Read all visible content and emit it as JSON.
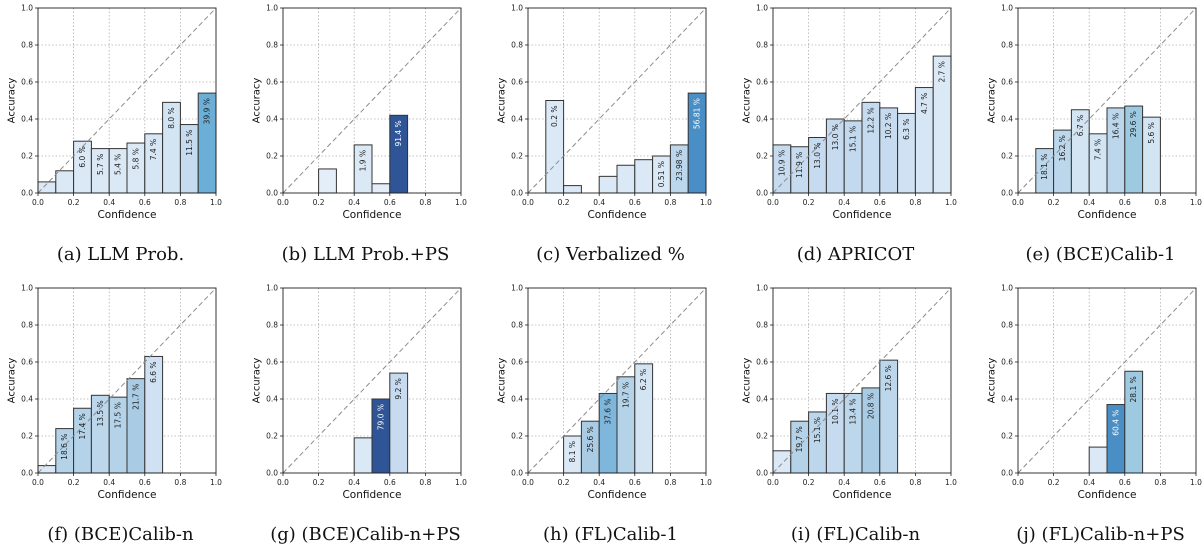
{
  "chart_data": [
    {
      "type": "bar",
      "caption": "(a) LLM Prob.",
      "xlabel": "Confidence",
      "ylabel": "Accuracy",
      "xlim": [
        0,
        1
      ],
      "ylim": [
        0,
        1
      ],
      "xticks": [
        "0.0",
        "0.2",
        "0.4",
        "0.6",
        "0.8",
        "1.0"
      ],
      "yticks": [
        "0.0",
        "0.2",
        "0.4",
        "0.6",
        "0.8",
        "1.0"
      ],
      "grid": true,
      "diagonal": true,
      "bin_width": 0.1,
      "bins": [
        {
          "x": 0.0,
          "accuracy": 0.06,
          "label": "",
          "color": "#dbe9f6"
        },
        {
          "x": 0.1,
          "accuracy": 0.12,
          "label": "",
          "color": "#dbe9f6"
        },
        {
          "x": 0.2,
          "accuracy": 0.28,
          "label": "6.0 %",
          "color": "#dbe9f6"
        },
        {
          "x": 0.3,
          "accuracy": 0.24,
          "label": "5.7 %",
          "color": "#dbe9f6"
        },
        {
          "x": 0.4,
          "accuracy": 0.24,
          "label": "5.4 %",
          "color": "#dbe9f6"
        },
        {
          "x": 0.5,
          "accuracy": 0.27,
          "label": "5.8 %",
          "color": "#dbe9f6"
        },
        {
          "x": 0.6,
          "accuracy": 0.32,
          "label": "7.4 %",
          "color": "#d6e6f4"
        },
        {
          "x": 0.7,
          "accuracy": 0.49,
          "label": "8.0 %",
          "color": "#d3e4f3"
        },
        {
          "x": 0.8,
          "accuracy": 0.37,
          "label": "11.5 %",
          "color": "#c6dbef"
        },
        {
          "x": 0.9,
          "accuracy": 0.54,
          "label": "39.9 %",
          "color": "#6baed6"
        }
      ]
    },
    {
      "type": "bar",
      "caption": "(b) LLM Prob.+PS",
      "xlabel": "Confidence",
      "ylabel": "Accuracy",
      "xlim": [
        0,
        1
      ],
      "ylim": [
        0,
        1
      ],
      "xticks": [
        "0.0",
        "0.2",
        "0.4",
        "0.6",
        "0.8",
        "1.0"
      ],
      "yticks": [
        "0.0",
        "0.2",
        "0.4",
        "0.6",
        "0.8",
        "1.0"
      ],
      "grid": true,
      "diagonal": true,
      "bin_width": 0.1,
      "bins": [
        {
          "x": 0.2,
          "accuracy": 0.13,
          "label": "",
          "color": "#e3eef8"
        },
        {
          "x": 0.4,
          "accuracy": 0.26,
          "label": "1.9 %",
          "color": "#dbe9f6"
        },
        {
          "x": 0.5,
          "accuracy": 0.05,
          "label": "",
          "color": "#e3eef8"
        },
        {
          "x": 0.6,
          "accuracy": 0.42,
          "label": "91.4 %",
          "color": "#2f5597"
        }
      ]
    },
    {
      "type": "bar",
      "caption": "(c) Verbalized %",
      "xlabel": "Confidence",
      "ylabel": "Accuracy",
      "xlim": [
        0,
        1
      ],
      "ylim": [
        0,
        1
      ],
      "xticks": [
        "0.0",
        "0.2",
        "0.4",
        "0.6",
        "0.8",
        "1.0"
      ],
      "yticks": [
        "0.0",
        "0.2",
        "0.4",
        "0.6",
        "0.8",
        "1.0"
      ],
      "grid": true,
      "diagonal": true,
      "bin_width": 0.1,
      "bins": [
        {
          "x": 0.1,
          "accuracy": 0.5,
          "label": "0.2 %",
          "color": "#dbe9f6"
        },
        {
          "x": 0.2,
          "accuracy": 0.04,
          "label": "",
          "color": "#dbe9f6"
        },
        {
          "x": 0.4,
          "accuracy": 0.09,
          "label": "",
          "color": "#dbe9f6"
        },
        {
          "x": 0.5,
          "accuracy": 0.15,
          "label": "",
          "color": "#dbe9f6"
        },
        {
          "x": 0.6,
          "accuracy": 0.18,
          "label": "",
          "color": "#dbe9f6"
        },
        {
          "x": 0.7,
          "accuracy": 0.2,
          "label": "0.51 %",
          "color": "#dbe9f6"
        },
        {
          "x": 0.8,
          "accuracy": 0.26,
          "label": "23.98 %",
          "color": "#bcd7eb"
        },
        {
          "x": 0.9,
          "accuracy": 0.54,
          "label": "56.81 %",
          "color": "#4a8ec6"
        }
      ]
    },
    {
      "type": "bar",
      "caption": "(d) APRICOT",
      "xlabel": "Confidence",
      "ylabel": "Accuracy",
      "xlim": [
        0,
        1
      ],
      "ylim": [
        0,
        1
      ],
      "xticks": [
        "0.0",
        "0.2",
        "0.4",
        "0.6",
        "0.8",
        "1.0"
      ],
      "yticks": [
        "0.0",
        "0.2",
        "0.4",
        "0.6",
        "0.8",
        "1.0"
      ],
      "grid": true,
      "diagonal": true,
      "bin_width": 0.1,
      "bins": [
        {
          "x": 0.0,
          "accuracy": 0.26,
          "label": "10.9 %",
          "color": "#c6dbef"
        },
        {
          "x": 0.1,
          "accuracy": 0.25,
          "label": "11.9 %",
          "color": "#c6dbef"
        },
        {
          "x": 0.2,
          "accuracy": 0.3,
          "label": "13.0 %",
          "color": "#c6dbef"
        },
        {
          "x": 0.3,
          "accuracy": 0.4,
          "label": "13.0 %",
          "color": "#c6dbef"
        },
        {
          "x": 0.4,
          "accuracy": 0.39,
          "label": "15.1 %",
          "color": "#c3d9ee"
        },
        {
          "x": 0.5,
          "accuracy": 0.49,
          "label": "12.2 %",
          "color": "#c6dbef"
        },
        {
          "x": 0.6,
          "accuracy": 0.46,
          "label": "10.2 %",
          "color": "#c6dbef"
        },
        {
          "x": 0.7,
          "accuracy": 0.43,
          "label": "6.3 %",
          "color": "#cfe1f2"
        },
        {
          "x": 0.8,
          "accuracy": 0.57,
          "label": "4.7 %",
          "color": "#d6e6f4"
        },
        {
          "x": 0.9,
          "accuracy": 0.74,
          "label": "2.7 %",
          "color": "#dbe9f6"
        }
      ]
    },
    {
      "type": "bar",
      "caption": "(e) (BCE)Calib-1",
      "xlabel": "Confidence",
      "ylabel": "Accuracy",
      "xlim": [
        0,
        1
      ],
      "ylim": [
        0,
        1
      ],
      "xticks": [
        "0.0",
        "0.2",
        "0.4",
        "0.6",
        "0.8",
        "1.0"
      ],
      "yticks": [
        "0.0",
        "0.2",
        "0.4",
        "0.6",
        "0.8",
        "1.0"
      ],
      "grid": true,
      "diagonal": true,
      "bin_width": 0.1,
      "bins": [
        {
          "x": 0.1,
          "accuracy": 0.24,
          "label": "18.1 %",
          "color": "#bcd7eb"
        },
        {
          "x": 0.2,
          "accuracy": 0.34,
          "label": "16.2 %",
          "color": "#bcd7eb"
        },
        {
          "x": 0.3,
          "accuracy": 0.45,
          "label": "6.7 %",
          "color": "#d3e4f3"
        },
        {
          "x": 0.4,
          "accuracy": 0.32,
          "label": "7.4 %",
          "color": "#d3e4f3"
        },
        {
          "x": 0.5,
          "accuracy": 0.46,
          "label": "16.4 %",
          "color": "#bcd7eb"
        },
        {
          "x": 0.6,
          "accuracy": 0.47,
          "label": "29.6 %",
          "color": "#9ecae1"
        },
        {
          "x": 0.7,
          "accuracy": 0.41,
          "label": "5.6 %",
          "color": "#d3e4f3"
        }
      ]
    },
    {
      "type": "bar",
      "caption": "(f) (BCE)Calib-n",
      "xlabel": "Confidence",
      "ylabel": "Accuracy",
      "xlim": [
        0,
        1
      ],
      "ylim": [
        0,
        1
      ],
      "xticks": [
        "0.0",
        "0.2",
        "0.4",
        "0.6",
        "0.8",
        "1.0"
      ],
      "yticks": [
        "0.0",
        "0.2",
        "0.4",
        "0.6",
        "0.8",
        "1.0"
      ],
      "grid": true,
      "diagonal": true,
      "bin_width": 0.1,
      "bins": [
        {
          "x": 0.0,
          "accuracy": 0.04,
          "label": "",
          "color": "#dbe9f6"
        },
        {
          "x": 0.1,
          "accuracy": 0.24,
          "label": "18.6 %",
          "color": "#b4d3e9"
        },
        {
          "x": 0.2,
          "accuracy": 0.35,
          "label": "17.4 %",
          "color": "#b4d3e9"
        },
        {
          "x": 0.3,
          "accuracy": 0.42,
          "label": "13.5 %",
          "color": "#bcd7eb"
        },
        {
          "x": 0.4,
          "accuracy": 0.41,
          "label": "17.5 %",
          "color": "#b4d3e9"
        },
        {
          "x": 0.5,
          "accuracy": 0.51,
          "label": "21.7 %",
          "color": "#a9cce4"
        },
        {
          "x": 0.6,
          "accuracy": 0.63,
          "label": "6.6 %",
          "color": "#cfe1f2"
        }
      ]
    },
    {
      "type": "bar",
      "caption": "(g) (BCE)Calib-n+PS",
      "xlabel": "Confidence",
      "ylabel": "Accuracy",
      "xlim": [
        0,
        1
      ],
      "ylim": [
        0,
        1
      ],
      "xticks": [
        "0.0",
        "0.2",
        "0.4",
        "0.6",
        "0.8",
        "1.0"
      ],
      "yticks": [
        "0.0",
        "0.2",
        "0.4",
        "0.6",
        "0.8",
        "1.0"
      ],
      "grid": true,
      "diagonal": true,
      "bin_width": 0.1,
      "bins": [
        {
          "x": 0.4,
          "accuracy": 0.19,
          "label": "",
          "color": "#dbe9f6"
        },
        {
          "x": 0.5,
          "accuracy": 0.4,
          "label": "79.0 %",
          "color": "#2f5597"
        },
        {
          "x": 0.6,
          "accuracy": 0.54,
          "label": "9.2 %",
          "color": "#c6dbef"
        }
      ]
    },
    {
      "type": "bar",
      "caption": "(h) (FL)Calib-1",
      "xlabel": "Confidence",
      "ylabel": "Accuracy",
      "xlim": [
        0,
        1
      ],
      "ylim": [
        0,
        1
      ],
      "xticks": [
        "0.0",
        "0.2",
        "0.4",
        "0.6",
        "0.8",
        "1.0"
      ],
      "yticks": [
        "0.0",
        "0.2",
        "0.4",
        "0.6",
        "0.8",
        "1.0"
      ],
      "grid": true,
      "diagonal": true,
      "bin_width": 0.1,
      "bins": [
        {
          "x": 0.2,
          "accuracy": 0.2,
          "label": "8.1 %",
          "color": "#dbe9f6"
        },
        {
          "x": 0.3,
          "accuracy": 0.28,
          "label": "25.6 %",
          "color": "#a9cce4"
        },
        {
          "x": 0.4,
          "accuracy": 0.43,
          "label": "37.6 %",
          "color": "#7fb6db"
        },
        {
          "x": 0.5,
          "accuracy": 0.52,
          "label": "19.7 %",
          "color": "#b4d3e9"
        },
        {
          "x": 0.6,
          "accuracy": 0.59,
          "label": "6.2 %",
          "color": "#d3e4f3"
        }
      ]
    },
    {
      "type": "bar",
      "caption": "(i) (FL)Calib-n",
      "xlabel": "Confidence",
      "ylabel": "Accuracy",
      "xlim": [
        0,
        1
      ],
      "ylim": [
        0,
        1
      ],
      "xticks": [
        "0.0",
        "0.2",
        "0.4",
        "0.6",
        "0.8",
        "1.0"
      ],
      "yticks": [
        "0.0",
        "0.2",
        "0.4",
        "0.6",
        "0.8",
        "1.0"
      ],
      "grid": true,
      "diagonal": true,
      "bin_width": 0.1,
      "bins": [
        {
          "x": 0.0,
          "accuracy": 0.12,
          "label": "",
          "color": "#dbe9f6"
        },
        {
          "x": 0.1,
          "accuracy": 0.28,
          "label": "19.7 %",
          "color": "#b4d3e9"
        },
        {
          "x": 0.2,
          "accuracy": 0.33,
          "label": "15.1 %",
          "color": "#bcd7eb"
        },
        {
          "x": 0.3,
          "accuracy": 0.43,
          "label": "10.1 %",
          "color": "#c6dbef"
        },
        {
          "x": 0.4,
          "accuracy": 0.43,
          "label": "13.4 %",
          "color": "#bcd7eb"
        },
        {
          "x": 0.5,
          "accuracy": 0.46,
          "label": "20.8 %",
          "color": "#a9cce4"
        },
        {
          "x": 0.6,
          "accuracy": 0.61,
          "label": "12.6 %",
          "color": "#bcd7eb"
        }
      ]
    },
    {
      "type": "bar",
      "caption": "(j) (FL)Calib-n+PS",
      "xlabel": "Confidence",
      "ylabel": "Accuracy",
      "xlim": [
        0,
        1
      ],
      "ylim": [
        0,
        1
      ],
      "xticks": [
        "0.0",
        "0.2",
        "0.4",
        "0.6",
        "0.8",
        "1.0"
      ],
      "yticks": [
        "0.0",
        "0.2",
        "0.4",
        "0.6",
        "0.8",
        "1.0"
      ],
      "grid": true,
      "diagonal": true,
      "bin_width": 0.1,
      "bins": [
        {
          "x": 0.4,
          "accuracy": 0.14,
          "label": "",
          "color": "#dbe9f6"
        },
        {
          "x": 0.5,
          "accuracy": 0.37,
          "label": "60.4 %",
          "color": "#4a8ec6"
        },
        {
          "x": 0.6,
          "accuracy": 0.55,
          "label": "28.1 %",
          "color": "#9ecae1"
        }
      ]
    }
  ]
}
